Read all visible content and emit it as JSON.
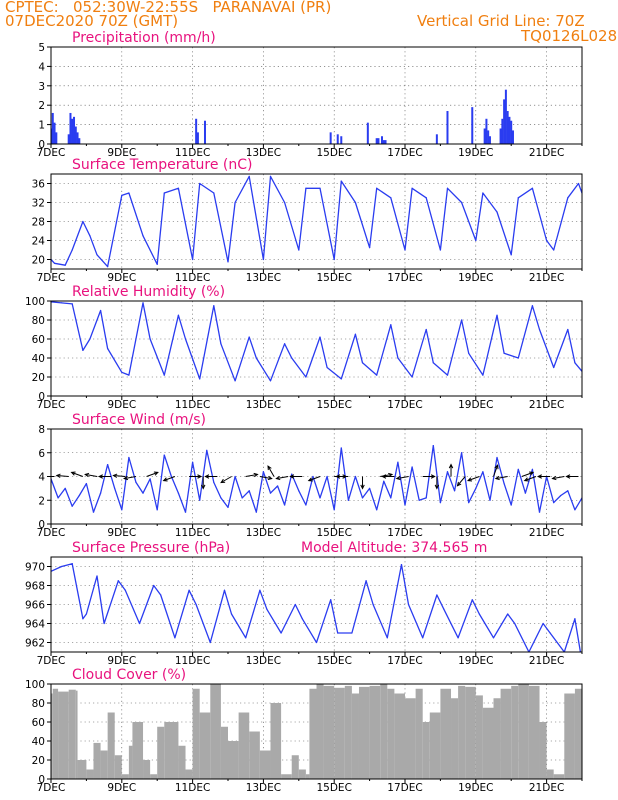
{
  "header": {
    "line1": "CPTEC:   052:30W-22:55S   PARANAVAI (PR)",
    "line2": "07DEC2020 70Z (GMT)",
    "grid_note": "Vertical Grid Line: 70Z",
    "code": "TQ0126L028"
  },
  "chart_data": [
    {
      "id": "precip",
      "type": "bar",
      "title": "Precipitation (mm/h)",
      "ylim": [
        0,
        5
      ],
      "yticks": [
        0,
        1,
        2,
        3,
        4,
        5
      ],
      "color": "#2a3cf0",
      "x_days": [
        7.0,
        7.05,
        7.1,
        7.15,
        7.5,
        7.55,
        7.6,
        7.65,
        7.7,
        7.75,
        7.8,
        11.1,
        11.15,
        11.35,
        14.9,
        15.1,
        15.2,
        15.95,
        16.2,
        16.25,
        16.35,
        16.4,
        16.45,
        17.9,
        18.2,
        18.9,
        19.25,
        19.3,
        19.35,
        19.4,
        19.7,
        19.75,
        19.8,
        19.85,
        19.9,
        19.95,
        20.0,
        20.05
      ],
      "values": [
        0.8,
        1.6,
        1.1,
        0.6,
        0.5,
        1.6,
        1.3,
        1.4,
        0.9,
        0.6,
        0.3,
        1.3,
        0.6,
        1.2,
        0.6,
        0.5,
        0.4,
        1.1,
        0.3,
        0.3,
        0.4,
        0.2,
        0.2,
        0.5,
        1.7,
        1.9,
        0.8,
        1.3,
        0.7,
        0.4,
        0.8,
        1.3,
        2.3,
        2.8,
        1.7,
        1.4,
        1.2,
        0.7
      ]
    },
    {
      "id": "temp",
      "type": "line",
      "title": "Surface Temperature (nC)",
      "ylim": [
        18,
        38
      ],
      "yticks": [
        20,
        24,
        28,
        32,
        36
      ],
      "color": "#2a3cf0",
      "x_days": [
        7.0,
        7.1,
        7.4,
        7.6,
        7.9,
        8.1,
        8.3,
        8.6,
        9.0,
        9.2,
        9.6,
        10.0,
        10.2,
        10.6,
        11.0,
        11.2,
        11.6,
        12.0,
        12.2,
        12.6,
        13.0,
        13.2,
        13.6,
        14.0,
        14.2,
        14.6,
        15.0,
        15.2,
        15.6,
        16.0,
        16.2,
        16.6,
        17.0,
        17.2,
        17.6,
        18.0,
        18.2,
        18.6,
        19.0,
        19.2,
        19.6,
        20.0,
        20.2,
        20.6,
        21.0,
        21.2,
        21.6,
        21.9,
        22.0
      ],
      "values": [
        20,
        19.2,
        18.8,
        22,
        28,
        25,
        21,
        18.5,
        33.5,
        34,
        25,
        19,
        34,
        35,
        20,
        36,
        34,
        19.5,
        32,
        37.5,
        20,
        37.5,
        32,
        22,
        35,
        35,
        20,
        36.5,
        32,
        22.5,
        35,
        33,
        22,
        35,
        33,
        22,
        35,
        32,
        24,
        34,
        30,
        21,
        33,
        35,
        24,
        22,
        33,
        36,
        34
      ]
    },
    {
      "id": "rh",
      "type": "line",
      "title": "Relative Humidity (%)",
      "ylim": [
        0,
        100
      ],
      "yticks": [
        0,
        20,
        40,
        60,
        80,
        100
      ],
      "color": "#2a3cf0",
      "x_days": [
        7.0,
        7.3,
        7.6,
        7.9,
        8.1,
        8.4,
        8.6,
        9.0,
        9.2,
        9.6,
        9.8,
        10.2,
        10.6,
        10.8,
        11.2,
        11.6,
        11.8,
        12.2,
        12.6,
        12.8,
        13.2,
        13.6,
        13.8,
        14.2,
        14.6,
        14.8,
        15.2,
        15.6,
        15.8,
        16.2,
        16.6,
        16.8,
        17.2,
        17.6,
        17.8,
        18.2,
        18.6,
        18.8,
        19.2,
        19.6,
        19.8,
        20.2,
        20.6,
        20.8,
        21.2,
        21.6,
        21.8,
        22.0
      ],
      "values": [
        99,
        98,
        97,
        48,
        60,
        90,
        50,
        25,
        22,
        98,
        60,
        22,
        85,
        60,
        18,
        95,
        55,
        16,
        62,
        40,
        16,
        55,
        40,
        20,
        62,
        30,
        18,
        65,
        35,
        22,
        75,
        40,
        20,
        70,
        35,
        22,
        80,
        45,
        22,
        85,
        45,
        40,
        95,
        70,
        30,
        70,
        35,
        26
      ]
    },
    {
      "id": "wind",
      "type": "line",
      "title": "Surface Wind (m/s)",
      "ylim": [
        0,
        8
      ],
      "yticks": [
        0,
        2,
        4,
        6,
        8
      ],
      "color": "#2a3cf0",
      "x_days": [
        7.0,
        7.2,
        7.4,
        7.6,
        7.8,
        8.0,
        8.2,
        8.4,
        8.6,
        8.8,
        9.0,
        9.2,
        9.4,
        9.6,
        9.8,
        10.0,
        10.2,
        10.4,
        10.6,
        10.8,
        11.0,
        11.2,
        11.4,
        11.6,
        11.8,
        12.0,
        12.2,
        12.4,
        12.6,
        12.8,
        13.0,
        13.2,
        13.4,
        13.6,
        13.8,
        14.0,
        14.2,
        14.4,
        14.6,
        14.8,
        15.0,
        15.2,
        15.4,
        15.6,
        15.8,
        16.0,
        16.2,
        16.4,
        16.6,
        16.8,
        17.0,
        17.2,
        17.4,
        17.6,
        17.8,
        18.0,
        18.2,
        18.4,
        18.6,
        18.8,
        19.0,
        19.2,
        19.4,
        19.6,
        19.8,
        20.0,
        20.2,
        20.4,
        20.6,
        20.8,
        21.0,
        21.2,
        21.4,
        21.6,
        21.8,
        22.0
      ],
      "values": [
        3.8,
        2.2,
        3.0,
        1.5,
        2.4,
        3.4,
        1.0,
        2.6,
        5.0,
        3.0,
        1.2,
        5.6,
        3.5,
        2.6,
        3.8,
        1.2,
        5.8,
        4.0,
        2.6,
        1.0,
        5.2,
        2.0,
        6.2,
        3.5,
        2.2,
        1.4,
        4.0,
        2.2,
        2.8,
        1.0,
        4.4,
        2.6,
        3.2,
        1.6,
        4.2,
        2.8,
        1.6,
        4.0,
        2.2,
        4.0,
        1.2,
        6.4,
        2.0,
        4.0,
        2.2,
        3.0,
        1.2,
        3.6,
        2.2,
        5.2,
        1.6,
        4.8,
        2.0,
        2.2,
        6.6,
        1.8,
        4.4,
        2.8,
        6.0,
        1.8,
        3.0,
        4.4,
        2.0,
        5.6,
        3.4,
        1.6,
        4.6,
        2.6,
        4.6,
        1.0,
        4.0,
        1.8,
        2.4,
        2.8,
        1.2,
        2.2
      ],
      "vectors_day": [
        7.1,
        7.5,
        7.9,
        8.3,
        8.7,
        9.1,
        9.4,
        9.7,
        10.5,
        10.9,
        11.3,
        11.7,
        12.1,
        12.5,
        12.9,
        13.3,
        13.7,
        14.1,
        14.6,
        15.0,
        15.4,
        15.8,
        16.3,
        16.7,
        17.1,
        17.5,
        17.9,
        18.3,
        18.7,
        19.1,
        19.5,
        19.9,
        20.3,
        20.7,
        21.1,
        21.5,
        21.9
      ],
      "vectors_deg": [
        180,
        175,
        160,
        170,
        180,
        175,
        190,
        20,
        200,
        0,
        270,
        180,
        210,
        10,
        350,
        120,
        190,
        180,
        200,
        0,
        180,
        270,
        10,
        180,
        190,
        0,
        270,
        90,
        230,
        200,
        70,
        190,
        20,
        200,
        180,
        190,
        180
      ]
    },
    {
      "id": "press",
      "type": "line",
      "title": "Surface Pressure (hPa)",
      "subtitle": "Model Altitude: 374.565 m",
      "ylim": [
        961,
        971
      ],
      "yticks": [
        962,
        964,
        966,
        968,
        970
      ],
      "color": "#2a3cf0",
      "x_days": [
        7.0,
        7.3,
        7.6,
        7.9,
        8.0,
        8.3,
        8.5,
        8.9,
        9.1,
        9.5,
        9.9,
        10.1,
        10.5,
        10.9,
        11.1,
        11.5,
        11.9,
        12.1,
        12.5,
        12.9,
        13.1,
        13.5,
        13.9,
        14.1,
        14.5,
        14.9,
        15.1,
        15.5,
        15.9,
        16.1,
        16.5,
        16.9,
        17.1,
        17.5,
        17.9,
        18.1,
        18.5,
        18.9,
        19.1,
        19.5,
        19.9,
        20.1,
        20.5,
        20.9,
        21.1,
        21.5,
        21.8,
        22.0
      ],
      "values": [
        969.5,
        970,
        970.3,
        964.5,
        965,
        969,
        964,
        968.5,
        967.5,
        964,
        968,
        967,
        962.5,
        967.5,
        966,
        962,
        967.5,
        965,
        962.5,
        967.5,
        965.5,
        963,
        966,
        964.5,
        962,
        966.5,
        963,
        963,
        968.5,
        966,
        962.5,
        970.2,
        966,
        962.5,
        967,
        965.5,
        962.5,
        966.5,
        965,
        962.5,
        965,
        964,
        961,
        964,
        963,
        961,
        964.5,
        960
      ]
    },
    {
      "id": "cloud",
      "type": "area",
      "title": "Cloud Cover (%)",
      "ylim": [
        0,
        100
      ],
      "yticks": [
        0,
        20,
        40,
        60,
        80,
        100
      ],
      "color": "#a9a9a9",
      "x_days": [
        7.0,
        7.05,
        7.2,
        7.5,
        7.7,
        7.75,
        8.0,
        8.2,
        8.4,
        8.6,
        8.8,
        9.0,
        9.2,
        9.3,
        9.6,
        9.8,
        10.0,
        10.2,
        10.6,
        10.8,
        11.0,
        11.2,
        11.5,
        11.8,
        12.0,
        12.3,
        12.6,
        12.9,
        13.2,
        13.5,
        13.8,
        14.0,
        14.2,
        14.3,
        14.5,
        14.7,
        15.0,
        15.3,
        15.5,
        15.7,
        16.0,
        16.3,
        16.5,
        16.7,
        17.0,
        17.3,
        17.5,
        17.7,
        18.0,
        18.3,
        18.5,
        18.7,
        19.0,
        19.2,
        19.5,
        19.7,
        20.0,
        20.2,
        20.5,
        20.8,
        21.0,
        21.2,
        21.5,
        21.8,
        22.0
      ],
      "values": [
        90,
        95,
        92,
        94,
        93,
        20,
        10,
        38,
        30,
        70,
        25,
        5,
        35,
        60,
        20,
        5,
        55,
        60,
        35,
        10,
        95,
        70,
        100,
        55,
        40,
        70,
        50,
        30,
        80,
        5,
        25,
        10,
        5,
        95,
        100,
        98,
        96,
        98,
        90,
        97,
        98,
        100,
        95,
        90,
        85,
        95,
        60,
        70,
        95,
        85,
        98,
        97,
        88,
        75,
        85,
        95,
        98,
        100,
        98,
        60,
        10,
        5,
        90,
        95,
        100
      ]
    }
  ]
}
